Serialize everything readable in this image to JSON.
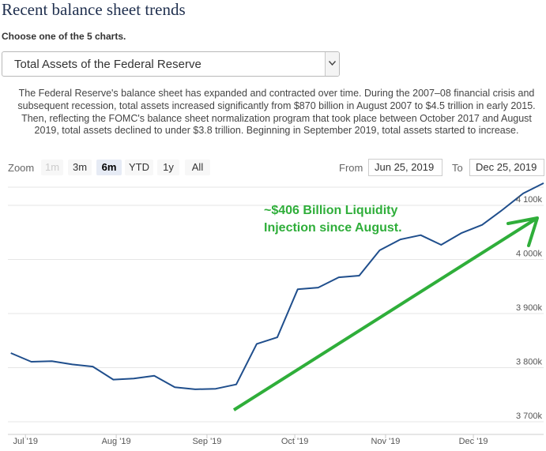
{
  "header": {
    "title": "Recent balance sheet trends",
    "choose_label": "Choose one of the 5 charts."
  },
  "chart_selector": {
    "selected": "Total Assets of the Federal Reserve"
  },
  "description": "The Federal Reserve's balance sheet has expanded and contracted over time. During the 2007–08 financial crisis and subsequent recession, total assets increased significantly from $870 billion in August 2007 to $4.5 trillion in early 2015. Then, reflecting the FOMC's balance sheet normalization program that took place between October 2017 and August 2019, total assets declined to under $3.8 trillion. Beginning in September 2019, total assets started to increase.",
  "zoom": {
    "label": "Zoom",
    "buttons": [
      {
        "label": "1m",
        "state": "disabled"
      },
      {
        "label": "3m",
        "state": "normal"
      },
      {
        "label": "6m",
        "state": "active"
      },
      {
        "label": "YTD",
        "state": "normal"
      },
      {
        "label": "1y",
        "state": "normal"
      },
      {
        "label": "All",
        "state": "normal"
      }
    ]
  },
  "range": {
    "from_label": "From",
    "from_value": "Jun 25, 2019",
    "to_label": "To",
    "to_value": "Dec 25, 2019"
  },
  "annotation": {
    "line1": "~$406 Billion Liquidity",
    "line2": "Injection since August.",
    "color": "#2fae3a"
  },
  "chart_data": {
    "type": "line",
    "title": "",
    "xlabel": "",
    "ylabel": "",
    "ylim": [
      3700,
      4140
    ],
    "y_ticks": [
      {
        "value": 3700,
        "label": "3 700k"
      },
      {
        "value": 3800,
        "label": "3 800k"
      },
      {
        "value": 3900,
        "label": "3 900k"
      },
      {
        "value": 4000,
        "label": "4 000k"
      },
      {
        "value": 4100,
        "label": "4 100k"
      }
    ],
    "x_range": [
      "2019-06-25",
      "2019-12-25"
    ],
    "x_ticks": [
      {
        "date": "2019-07-01",
        "label": "Jul '19"
      },
      {
        "date": "2019-08-01",
        "label": "Aug '19"
      },
      {
        "date": "2019-09-01",
        "label": "Sep '19"
      },
      {
        "date": "2019-10-01",
        "label": "Oct '19"
      },
      {
        "date": "2019-11-01",
        "label": "Nov '19"
      },
      {
        "date": "2019-12-01",
        "label": "Dec '19"
      }
    ],
    "grid": true,
    "line_color": "#1f4e8c",
    "series": [
      {
        "x": [
          "2019-06-26",
          "2019-07-03",
          "2019-07-10",
          "2019-07-17",
          "2019-07-24",
          "2019-07-31",
          "2019-08-07",
          "2019-08-14",
          "2019-08-21",
          "2019-08-28",
          "2019-09-04",
          "2019-09-11",
          "2019-09-18",
          "2019-09-25",
          "2019-10-02",
          "2019-10-09",
          "2019-10-16",
          "2019-10-23",
          "2019-10-30",
          "2019-11-06",
          "2019-11-13",
          "2019-11-20",
          "2019-11-27",
          "2019-12-04",
          "2019-12-11",
          "2019-12-18",
          "2019-12-25"
        ],
        "values": [
          3827,
          3811,
          3812,
          3806,
          3802,
          3778,
          3780,
          3785,
          3764,
          3760,
          3761,
          3769,
          3844,
          3856,
          3945,
          3948,
          3967,
          3970,
          4017,
          4037,
          4045,
          4027,
          4049,
          4064,
          4092,
          4122,
          4141
        ]
      }
    ]
  }
}
